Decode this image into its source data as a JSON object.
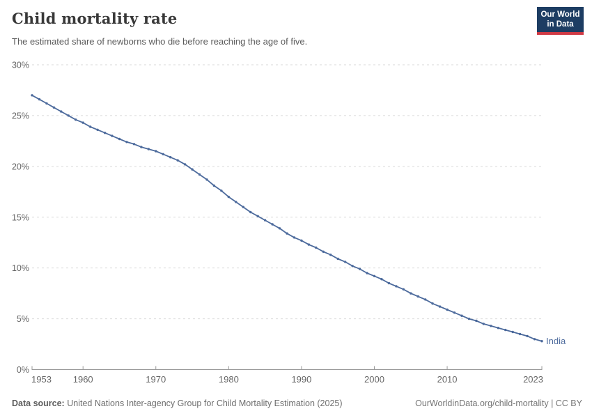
{
  "header": {
    "title": "Child mortality rate",
    "subtitle": "The estimated share of newborns who die before reaching the age of five."
  },
  "logo": {
    "line1": "Our World",
    "line2": "in Data",
    "bg_color": "#1d3d63",
    "accent_color": "#cf3a45"
  },
  "chart_data": {
    "type": "line",
    "title": "Child mortality rate",
    "subtitle": "The estimated share of newborns who die before reaching the age of five.",
    "xlabel": "",
    "ylabel": "",
    "xlim": [
      1953,
      2023
    ],
    "ylim": [
      0,
      30
    ],
    "x_ticks": [
      1953,
      1960,
      1970,
      1980,
      1990,
      2000,
      2010,
      2023
    ],
    "y_ticks": [
      0,
      5,
      10,
      15,
      20,
      25,
      30
    ],
    "y_tick_suffix": "%",
    "grid": "horizontal-dashed",
    "legend_position": "end-of-line",
    "series": [
      {
        "name": "India",
        "color": "#4C6A9C",
        "x": [
          1953,
          1954,
          1955,
          1956,
          1957,
          1958,
          1959,
          1960,
          1961,
          1962,
          1963,
          1964,
          1965,
          1966,
          1967,
          1968,
          1969,
          1970,
          1971,
          1972,
          1973,
          1974,
          1975,
          1976,
          1977,
          1978,
          1979,
          1980,
          1981,
          1982,
          1983,
          1984,
          1985,
          1986,
          1987,
          1988,
          1989,
          1990,
          1991,
          1992,
          1993,
          1994,
          1995,
          1996,
          1997,
          1998,
          1999,
          2000,
          2001,
          2002,
          2003,
          2004,
          2005,
          2006,
          2007,
          2008,
          2009,
          2010,
          2011,
          2012,
          2013,
          2014,
          2015,
          2016,
          2017,
          2018,
          2019,
          2020,
          2021,
          2022,
          2023
        ],
        "values": [
          27.0,
          26.6,
          26.2,
          25.8,
          25.4,
          25.0,
          24.6,
          24.3,
          23.9,
          23.6,
          23.3,
          23.0,
          22.7,
          22.4,
          22.2,
          21.9,
          21.7,
          21.5,
          21.2,
          20.9,
          20.6,
          20.2,
          19.7,
          19.2,
          18.7,
          18.1,
          17.6,
          17.0,
          16.5,
          16.0,
          15.5,
          15.1,
          14.7,
          14.3,
          13.9,
          13.4,
          13.0,
          12.7,
          12.3,
          12.0,
          11.6,
          11.3,
          10.9,
          10.6,
          10.2,
          9.9,
          9.5,
          9.2,
          8.9,
          8.5,
          8.2,
          7.9,
          7.5,
          7.2,
          6.9,
          6.5,
          6.2,
          5.9,
          5.6,
          5.3,
          5.0,
          4.8,
          4.5,
          4.3,
          4.1,
          3.9,
          3.7,
          3.5,
          3.3,
          3.0,
          2.8
        ]
      }
    ]
  },
  "colors": {
    "line": "#4C6A9C",
    "gridline": "#d9d9d9",
    "axis": "#999999",
    "tick_text": "#666666"
  },
  "footer": {
    "source_label": "Data source:",
    "source_text": "United Nations Inter-agency Group for Child Mortality Estimation (2025)",
    "credit": "OurWorldinData.org/child-mortality | CC BY"
  }
}
